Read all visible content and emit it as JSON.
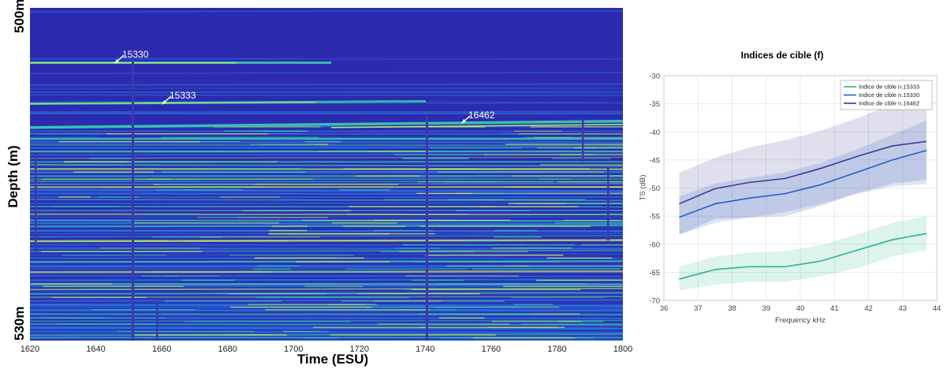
{
  "echogram": {
    "depth_top_label": "500m",
    "depth_bottom_label": "530m",
    "ylabel": "Depth (m)",
    "xlabel": "Time (ESU)",
    "x_ticks": [
      "1620",
      "1640",
      "1660",
      "1680",
      "1700",
      "1720",
      "1740",
      "1760",
      "1780",
      "1800"
    ],
    "annotations": [
      "15330",
      "15333",
      "16462"
    ],
    "colors": {
      "background": "#2c2bb0",
      "layer_mid": "#2a7ee0",
      "layer_hi": "#37c8b0",
      "layer_peak": "#b8e86a"
    }
  },
  "chart_data": {
    "type": "line",
    "title": "Indices de cible (f)",
    "xlabel": "Frequency kHz",
    "ylabel": "TS (dB)",
    "xlim": [
      36,
      44
    ],
    "ylim": [
      -70,
      -30
    ],
    "x_ticks": [
      36,
      37,
      38,
      39,
      40,
      41,
      42,
      43,
      44
    ],
    "y_ticks": [
      -30,
      -35,
      -40,
      -45,
      -50,
      -55,
      -60,
      -65,
      -70
    ],
    "grid": true,
    "legend_position": "top-right",
    "x": [
      36.45,
      37.5,
      38.5,
      39.55,
      40.6,
      41.7,
      42.7,
      43.7
    ],
    "series": [
      {
        "name": "Indice de cible n.15333",
        "color": "#2ab28e",
        "values": [
          -66.2,
          -64.5,
          -64.0,
          -64.0,
          -63.0,
          -61.0,
          -59.2,
          -58.1
        ],
        "lower": [
          -68.2,
          -67.2,
          -66.7,
          -66.7,
          -65.7,
          -64.2,
          -62.2,
          -61.0
        ],
        "upper": [
          -64.0,
          -62.2,
          -61.5,
          -61.2,
          -60.2,
          -58.2,
          -56.2,
          -55.0
        ]
      },
      {
        "name": "Indice de cible n.15330",
        "color": "#2060c8",
        "values": [
          -55.2,
          -52.8,
          -51.8,
          -51.0,
          -49.4,
          -47.1,
          -45.0,
          -43.3
        ],
        "lower": [
          -58.3,
          -56.2,
          -55.2,
          -54.3,
          -52.8,
          -51.0,
          -49.7,
          -49.3
        ],
        "upper": [
          -51.5,
          -49.2,
          -48.2,
          -47.2,
          -45.5,
          -43.0,
          -40.5,
          -38.0
        ]
      },
      {
        "name": "Indice de cible n.16462",
        "color": "#3a3a90",
        "values": [
          -52.8,
          -50.1,
          -49.0,
          -48.3,
          -46.5,
          -44.3,
          -42.5,
          -41.7
        ],
        "lower": [
          -58.3,
          -55.5,
          -55.3,
          -55.0,
          -53.2,
          -50.8,
          -49.2,
          -48.5
        ],
        "upper": [
          -47.3,
          -44.6,
          -42.8,
          -41.5,
          -39.8,
          -37.5,
          -35.0,
          -32.5
        ]
      }
    ]
  }
}
